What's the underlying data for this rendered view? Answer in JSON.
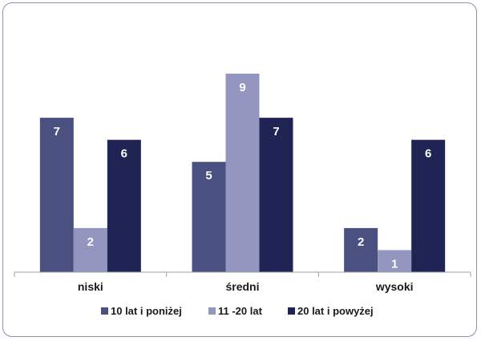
{
  "chart_data": {
    "type": "bar",
    "categories": [
      "niski",
      "średni",
      "wysoki"
    ],
    "series": [
      {
        "name": "10 lat i poniżej",
        "values": [
          7,
          5,
          2
        ],
        "color": "#4a5080"
      },
      {
        "name": "11 -20 lat",
        "values": [
          2,
          9,
          1
        ],
        "color": "#9396bf"
      },
      {
        "name": "20 lat i powyżej",
        "values": [
          6,
          7,
          6
        ],
        "color": "#1f2455"
      }
    ],
    "ylim": [
      0,
      9
    ],
    "grid": false,
    "legend_position": "bottom"
  }
}
